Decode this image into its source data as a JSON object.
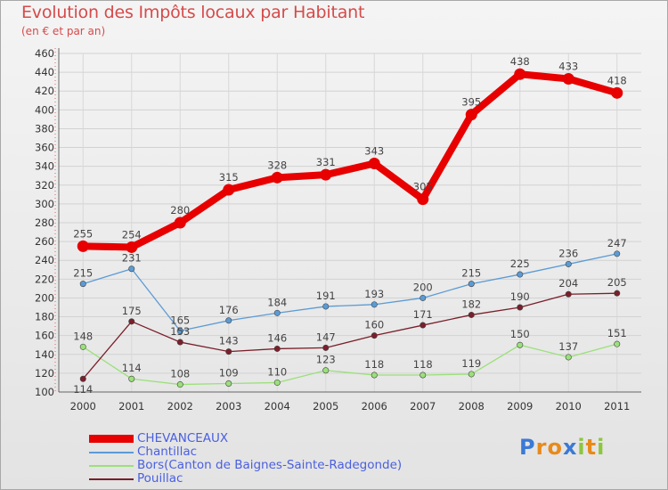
{
  "title": "Evolution des Impôts locaux par Habitant",
  "subtitle": "(en € et par an)",
  "logo": {
    "text": "Proxiti",
    "letters": [
      {
        "ch": "P",
        "color": "#3a7ad6"
      },
      {
        "ch": "r",
        "color": "#e88a1a"
      },
      {
        "ch": "o",
        "color": "#e88a1a"
      },
      {
        "ch": "x",
        "color": "#3a7ad6"
      },
      {
        "ch": "i",
        "color": "#8cc63f"
      },
      {
        "ch": "t",
        "color": "#e88a1a"
      },
      {
        "ch": "i",
        "color": "#8cc63f"
      }
    ]
  },
  "chart_data": {
    "type": "line",
    "x": [
      "2000",
      "2001",
      "2002",
      "2003",
      "2004",
      "2005",
      "2006",
      "2007",
      "2008",
      "2009",
      "2010",
      "2011"
    ],
    "ylim": [
      100,
      460
    ],
    "yticks": [
      100,
      120,
      140,
      160,
      180,
      200,
      220,
      240,
      260,
      280,
      300,
      320,
      340,
      360,
      380,
      400,
      420,
      440,
      460
    ],
    "grid": true,
    "legend_position": "bottom-left",
    "series": [
      {
        "name": "CHEVANCEAUX",
        "color": "#e80000",
        "emphasis": true,
        "values": [
          255,
          254,
          280,
          315,
          328,
          331,
          343,
          305,
          395,
          438,
          433,
          418
        ]
      },
      {
        "name": "Chantillac",
        "color": "#5b9bd5",
        "emphasis": false,
        "values": [
          215,
          231,
          165,
          176,
          184,
          191,
          193,
          200,
          215,
          225,
          236,
          247
        ]
      },
      {
        "name": "Bors(Canton de Baignes-Sainte-Radegonde)",
        "color": "#9be07a",
        "emphasis": false,
        "values": [
          148,
          114,
          108,
          109,
          110,
          123,
          118,
          118,
          119,
          150,
          137,
          151
        ]
      },
      {
        "name": "Pouillac",
        "color": "#7a1f2b",
        "emphasis": false,
        "values": [
          114,
          175,
          153,
          143,
          146,
          147,
          160,
          171,
          182,
          190,
          204,
          205
        ]
      }
    ]
  }
}
